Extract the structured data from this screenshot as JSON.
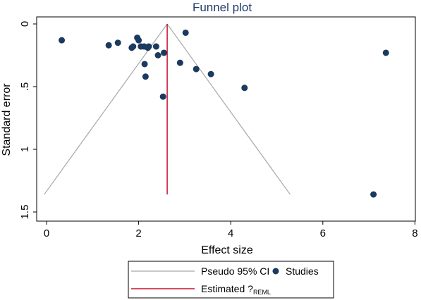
{
  "chart_data": {
    "type": "scatter",
    "title": "Funnel plot",
    "xlabel": "Effect size",
    "ylabel": "Standard error",
    "xlim": [
      -0.2,
      8.2
    ],
    "ylim": [
      -0.02,
      1.55
    ],
    "y_reversed": true,
    "x_ticks": [
      0,
      2,
      4,
      6,
      8
    ],
    "y_ticks": [
      0,
      0.5,
      1,
      1.5
    ],
    "y_tick_labels": [
      "0",
      ".5",
      "1",
      "1.5"
    ],
    "pooled_estimate": 2.62,
    "ci_lines": {
      "name": "Pseudo 95% CI",
      "apex": [
        2.62,
        0
      ],
      "se_max": 1.36,
      "x_left": -0.05,
      "x_right": 5.29
    },
    "studies": [
      {
        "x": 0.33,
        "y": 0.13
      },
      {
        "x": 1.35,
        "y": 0.17
      },
      {
        "x": 1.55,
        "y": 0.15
      },
      {
        "x": 1.85,
        "y": 0.19
      },
      {
        "x": 1.88,
        "y": 0.18
      },
      {
        "x": 1.97,
        "y": 0.11
      },
      {
        "x": 2.0,
        "y": 0.13
      },
      {
        "x": 2.05,
        "y": 0.18
      },
      {
        "x": 2.12,
        "y": 0.18
      },
      {
        "x": 2.2,
        "y": 0.19
      },
      {
        "x": 2.22,
        "y": 0.18
      },
      {
        "x": 2.38,
        "y": 0.18
      },
      {
        "x": 2.42,
        "y": 0.25
      },
      {
        "x": 2.13,
        "y": 0.32
      },
      {
        "x": 2.15,
        "y": 0.42
      },
      {
        "x": 2.55,
        "y": 0.23
      },
      {
        "x": 2.53,
        "y": 0.58
      },
      {
        "x": 2.9,
        "y": 0.31
      },
      {
        "x": 3.02,
        "y": 0.07
      },
      {
        "x": 3.25,
        "y": 0.36
      },
      {
        "x": 3.57,
        "y": 0.4
      },
      {
        "x": 4.3,
        "y": 0.51
      },
      {
        "x": 7.37,
        "y": 0.23
      },
      {
        "x": 7.1,
        "y": 1.36
      }
    ],
    "legend": {
      "ci_label": "Pseudo 95% CI",
      "studies_label": "Studies",
      "estimate_label": "Estimated ?",
      "estimate_sub": "REML"
    }
  },
  "colors": {
    "points": "#1a3a5f",
    "ci_lines": "#a8a8a8",
    "estimate_line": "#c8102e",
    "title": "#1f3d6b"
  }
}
